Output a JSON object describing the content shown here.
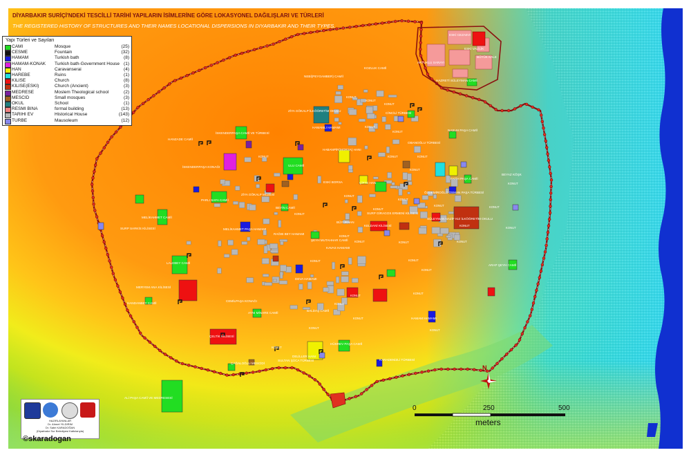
{
  "title": "DİYARBAKIR SURİÇİ'NDEKİ TESCİLLİ TARİHİ YAPILARIN İSİMLERİNE GÖRE LOKASYONEL DAĞILIŞLARI VE TÜRLERİ",
  "subtitle": "THE REGISTERED HISTORY OF STRUCTURES AND THEIR NAMES LOCATIONAL DISPERSIONS IN DIYARBAKIR AND THEIR TYPES.",
  "legend": {
    "title": "Yapı Türleri ve Sayıları",
    "items": [
      {
        "code": "CAMI",
        "desc": "Mosque",
        "count": "(25)",
        "color": "#22dd22"
      },
      {
        "code": "CESME",
        "desc": "Fountain",
        "count": "(32)",
        "color": "#111111"
      },
      {
        "code": "HAMAM",
        "desc": "Turkish bath",
        "count": "(8)",
        "color": "#1a1ae0"
      },
      {
        "code": "HAMAM-KONAK",
        "desc": "Turkish bath-Government House",
        "count": "(1)",
        "color": "#e020e0"
      },
      {
        "code": "HAN",
        "desc": "Caravanserai",
        "count": "(4)",
        "color": "#f0f000"
      },
      {
        "code": "HAREBE",
        "desc": "Ruins",
        "count": "(1)",
        "color": "#20e0e0"
      },
      {
        "code": "KILISE",
        "desc": "Church",
        "count": "(8)",
        "color": "#ee1111"
      },
      {
        "code": "KILISE(ESKI)",
        "desc": "Church (Ancient)",
        "count": "(3)",
        "color": "#c03010"
      },
      {
        "code": "MEDRESE",
        "desc": "Moslem Theological school",
        "count": "(2)",
        "color": "#7a20a0"
      },
      {
        "code": "MESCID",
        "desc": "Small mosques",
        "count": "(3)",
        "color": "#a06020"
      },
      {
        "code": "OKUL",
        "desc": "School",
        "count": "(1)",
        "color": "#208080"
      },
      {
        "code": "RESMI BINA",
        "desc": "formal building",
        "count": "(13)",
        "color": "#f08080"
      },
      {
        "code": "TARIHI EV",
        "desc": "Historical House",
        "count": "(143)",
        "color": "#b8b8b8"
      },
      {
        "code": "TURBE",
        "desc": "Mausoleum",
        "count": "(12)",
        "color": "#8888ee"
      }
    ]
  },
  "labels": [
    "ESKİ CEZAEVİ",
    "ESKİ VALİLİK",
    "BÜYÜK KALE",
    "ARTUKLU SARAYI",
    "HAZRETİ SÜLEYMAN CAMİİ",
    "NEBİ(PEYGAMBER) CAMİİ",
    "KOZLUK CAMİİ",
    "ZİYA GÖKALP İLKÖĞRETİM OKULU",
    "HAMAMLI HAMAMI",
    "İSKENDERPAŞA CAMİİ VE TÜRBESİ",
    "İSKENDERPAŞA KONAĞI",
    "HANZADE CAMİİ",
    "CİNCİLİ TÜRBESİ",
    "NASUH PAŞA CAMİİ",
    "HABANPİR(MORSA) HANI",
    "OBANOĞLU TÜRBESİ",
    "ULU CAMİİ",
    "ESKİ BORSA",
    "ÇİFTE HAN",
    "FATİH PAŞA CAMİİ",
    "ÖZDEMİROĞLU OSMAN PAŞA TÜRBESİ",
    "BEYAZ KÖŞK",
    "PARLI SAFA CAMİİ",
    "ZİYA GÖKALP MÜZESİ",
    "SÜLEYMAN NAZİF KIZ İLKÖĞRETİM OKULU",
    "BEYİN CAMİİ",
    "MELİKAHMET CAMİİ",
    "MELİKAHMET PAŞA HAMAMI",
    "BÜYÜKHAN",
    "SURP GİRAGOS ERMENİ KİLİSESİ",
    "KELDANİ KİLİSESİ",
    "RAĞIB BEY HAMAMI",
    "ŞEYH MUTAHHAR CAMİİ",
    "KAVAS HAMAMI",
    "ARAP ŞEYH CAMİİ",
    "SURP SARKİS KİLİSESİ",
    "MERYEM ANA KİLİSESİ",
    "LALEBEY CAMİİ",
    "DEVA HAMAMI",
    "HANDANBEY CAMİİ",
    "CEMİLPAŞA KONAĞI",
    "AYNI MİNARE CAMİİ",
    "BALDAŞ CAMİİ",
    "HAMAM HAMAMI",
    "HÜSREV PAŞA CAMİİ",
    "DELİLLER HANI",
    "SULTAN ŞÜCA TÜRBESİ",
    "ÇELTİK KİLİSESİ",
    "ÇAĞALOĞLU MESCİDİ",
    "KARADENİZLİ TÜRBESİ",
    "ALİ PAŞA CAMİİ VE MEDRESESİ",
    "KONUT"
  ],
  "scale": {
    "t0": "0",
    "t1": "250",
    "t2": "500",
    "unit": "meters"
  },
  "north": "N",
  "credits": {
    "l1": "HAZIRLAYANLAR",
    "l2": "Dr. Ahmet YILDIRIM",
    "l3": "Dr. Sabri KARADOĞAN",
    "l4": "(Diyarbakır Sur Belediyesi Katkılarıyla)",
    "copyright": "©skaradogan"
  },
  "colors": {
    "center": "#ff8a00",
    "orange": "#ff9a12",
    "yellow": "#f5e41a",
    "yellow_green": "#c9e31e",
    "green": "#53d65b",
    "cyan": "#25d9e8",
    "river": "#1030d0"
  }
}
